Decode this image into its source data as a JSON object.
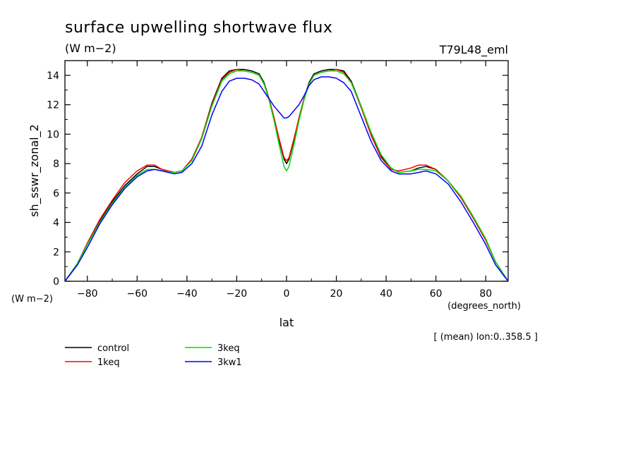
{
  "chart_data": {
    "type": "line",
    "title": "surface upwelling shortwave flux",
    "units": "(W m−2)",
    "tag": "T79L48_eml",
    "xlabel": "lat",
    "xunits": "(degrees_north)",
    "ylabel": "sh_sswr_zonal_2",
    "yunits": "(W m−2)",
    "footnote": "[ (mean) lon:0..358.5 ]",
    "xlim": [
      -89,
      89
    ],
    "ylim": [
      0,
      15
    ],
    "xticks": [
      "−80",
      "−60",
      "−40",
      "−20",
      "0",
      "20",
      "40",
      "60",
      "80"
    ],
    "yticks": [
      "0",
      "2",
      "4",
      "6",
      "8",
      "10",
      "12",
      "14"
    ],
    "grid": false,
    "legend_position": "bottom-left",
    "series": [
      {
        "name": "control",
        "color": "#000000",
        "x": [
          -89,
          -84,
          -80,
          -75,
          -70,
          -65,
          -60,
          -56,
          -53,
          -50,
          -45,
          -42,
          -38,
          -34,
          -30,
          -26,
          -23,
          -20,
          -17,
          -14,
          -11,
          -9,
          -7,
          -5,
          -3,
          -1,
          0,
          1,
          3,
          5,
          7,
          9,
          11,
          14,
          17,
          20,
          23,
          26,
          30,
          34,
          38,
          42,
          45,
          50,
          53,
          56,
          60,
          65,
          70,
          75,
          80,
          84,
          89
        ],
        "y": [
          0,
          1.2,
          2.5,
          4.1,
          5.4,
          6.5,
          7.3,
          7.8,
          7.8,
          7.6,
          7.4,
          7.5,
          8.3,
          9.8,
          12.1,
          13.8,
          14.3,
          14.4,
          14.4,
          14.3,
          14.1,
          13.5,
          12.4,
          11.1,
          9.6,
          8.3,
          8.0,
          8.3,
          9.6,
          11.1,
          12.4,
          13.5,
          14.1,
          14.3,
          14.4,
          14.4,
          14.3,
          13.6,
          11.9,
          10.0,
          8.5,
          7.7,
          7.4,
          7.5,
          7.7,
          7.8,
          7.6,
          6.8,
          5.7,
          4.3,
          2.8,
          1.3,
          0
        ]
      },
      {
        "name": "1keq",
        "color": "#ff0000",
        "x": [
          -89,
          -84,
          -80,
          -75,
          -70,
          -65,
          -60,
          -56,
          -53,
          -50,
          -45,
          -42,
          -38,
          -34,
          -30,
          -26,
          -23,
          -20,
          -17,
          -14,
          -11,
          -9,
          -7,
          -5,
          -3,
          -1,
          0,
          1,
          3,
          5,
          7,
          9,
          11,
          14,
          17,
          20,
          23,
          26,
          30,
          34,
          38,
          42,
          45,
          50,
          53,
          56,
          60,
          65,
          70,
          75,
          80,
          84,
          89
        ],
        "y": [
          0,
          1.2,
          2.6,
          4.2,
          5.5,
          6.7,
          7.5,
          7.9,
          7.9,
          7.6,
          7.4,
          7.5,
          8.3,
          9.8,
          12.0,
          13.7,
          14.2,
          14.4,
          14.3,
          14.2,
          14.0,
          13.4,
          12.4,
          11.1,
          9.7,
          8.4,
          8.2,
          8.4,
          9.7,
          11.1,
          12.4,
          13.4,
          14.0,
          14.2,
          14.3,
          14.4,
          14.2,
          13.5,
          11.8,
          9.9,
          8.4,
          7.6,
          7.5,
          7.7,
          7.9,
          7.9,
          7.6,
          6.8,
          5.7,
          4.3,
          2.8,
          1.3,
          0
        ]
      },
      {
        "name": "3keq",
        "color": "#00e000",
        "x": [
          -89,
          -84,
          -80,
          -75,
          -70,
          -65,
          -60,
          -56,
          -53,
          -50,
          -45,
          -42,
          -38,
          -34,
          -30,
          -26,
          -23,
          -20,
          -17,
          -14,
          -11,
          -9,
          -7,
          -5,
          -3,
          -1,
          0,
          1,
          3,
          5,
          7,
          9,
          11,
          14,
          17,
          20,
          23,
          26,
          30,
          34,
          38,
          42,
          45,
          50,
          53,
          56,
          60,
          65,
          70,
          75,
          80,
          84,
          89
        ],
        "y": [
          0,
          1.2,
          2.5,
          4.0,
          5.3,
          6.4,
          7.2,
          7.6,
          7.6,
          7.5,
          7.4,
          7.5,
          8.2,
          9.7,
          11.9,
          13.6,
          14.1,
          14.3,
          14.3,
          14.2,
          14.0,
          13.4,
          12.3,
          10.9,
          9.3,
          7.8,
          7.5,
          7.8,
          9.3,
          10.9,
          12.3,
          13.4,
          14.0,
          14.2,
          14.3,
          14.3,
          14.1,
          13.5,
          11.9,
          10.1,
          8.6,
          7.7,
          7.4,
          7.5,
          7.6,
          7.6,
          7.5,
          6.8,
          5.8,
          4.4,
          2.9,
          1.3,
          0
        ]
      },
      {
        "name": "3kw1",
        "color": "#0000ff",
        "x": [
          -89,
          -84,
          -80,
          -75,
          -70,
          -65,
          -60,
          -56,
          -53,
          -50,
          -45,
          -42,
          -38,
          -34,
          -30,
          -26,
          -23,
          -20,
          -17,
          -14,
          -11,
          -9,
          -7,
          -5,
          -3,
          -1,
          0,
          1,
          3,
          5,
          7,
          9,
          11,
          14,
          17,
          20,
          23,
          26,
          30,
          34,
          38,
          42,
          45,
          50,
          53,
          56,
          60,
          65,
          70,
          75,
          80,
          84,
          89
        ],
        "y": [
          0,
          1.1,
          2.3,
          3.9,
          5.2,
          6.3,
          7.1,
          7.5,
          7.6,
          7.5,
          7.3,
          7.4,
          8.0,
          9.2,
          11.3,
          12.9,
          13.6,
          13.8,
          13.8,
          13.7,
          13.4,
          12.9,
          12.4,
          11.9,
          11.5,
          11.1,
          11.1,
          11.2,
          11.6,
          12.0,
          12.6,
          13.3,
          13.7,
          13.9,
          13.9,
          13.8,
          13.5,
          12.9,
          11.2,
          9.5,
          8.2,
          7.5,
          7.3,
          7.3,
          7.4,
          7.5,
          7.3,
          6.6,
          5.4,
          4.0,
          2.5,
          1.1,
          0
        ]
      }
    ]
  }
}
